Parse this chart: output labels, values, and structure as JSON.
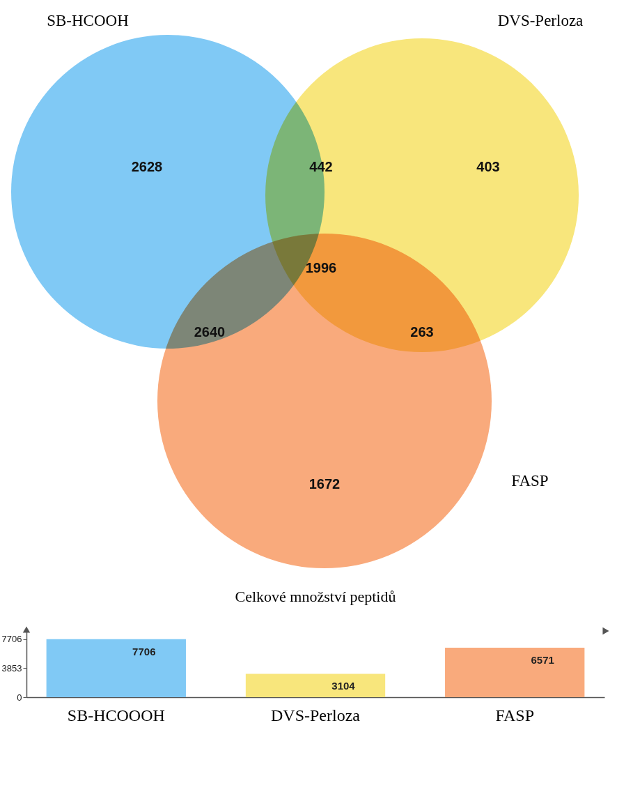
{
  "chart_data": [
    {
      "type": "other",
      "categories": [
        "SB-HCOOH",
        "DVS-Perloza",
        "FASP"
      ],
      "colors": [
        "#80c9f5",
        "#f8e67c",
        "#f9aa7c"
      ],
      "annotations": [
        "2628",
        "442",
        "403",
        "2640",
        "1996",
        "263",
        "1672"
      ]
    },
    {
      "type": "bar",
      "title": "Celkové množství peptidů",
      "categories": [
        "SB-HCOOOH",
        "DVS-Perloza",
        "FASP"
      ],
      "values": [
        7706,
        3104,
        6571
      ],
      "colors": [
        "#80c9f5",
        "#f8e67c",
        "#f9aa7c"
      ],
      "ylim": [
        0,
        8800
      ],
      "yticks": [
        0,
        3853,
        7706
      ],
      "data_labels": true
    }
  ]
}
